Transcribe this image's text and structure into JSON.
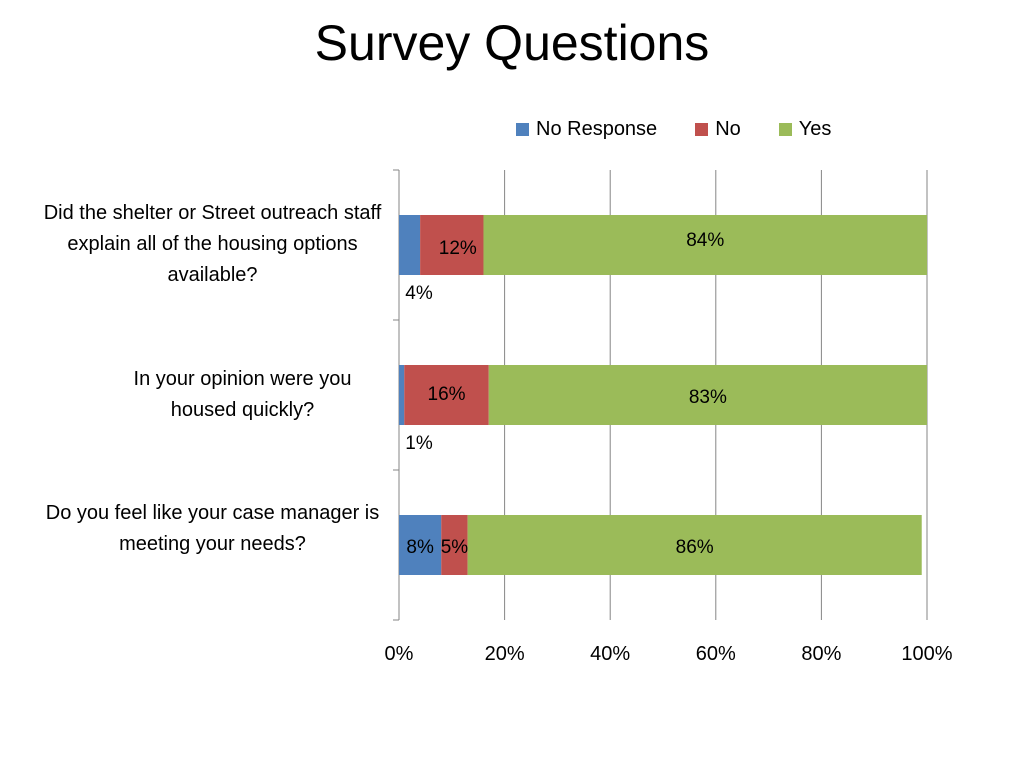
{
  "chart_data": {
    "type": "bar",
    "orientation": "horizontal",
    "stacked": true,
    "title": "Survey Questions",
    "categories": [
      "Did the shelter or Street outreach staff explain all of the housing options available?",
      "In your opinion were you housed quickly?",
      "Do you feel like your case manager is meeting your needs?"
    ],
    "series": [
      {
        "name": "No Response",
        "color": "#4f81bd",
        "values": [
          4,
          1,
          8
        ],
        "labels": [
          "4%",
          "1%",
          "8%"
        ]
      },
      {
        "name": "No",
        "color": "#c0504d",
        "values": [
          12,
          16,
          5
        ],
        "labels": [
          "12%",
          "16%",
          "5%"
        ]
      },
      {
        "name": "Yes",
        "color": "#9bbb59",
        "values": [
          84,
          83,
          86
        ],
        "labels": [
          "84%",
          "83%",
          "86%"
        ]
      }
    ],
    "xlim": [
      0,
      100
    ],
    "x_ticks": [
      "0%",
      "20%",
      "40%",
      "60%",
      "80%",
      "100%"
    ],
    "grid": true,
    "legend_position": "top"
  }
}
